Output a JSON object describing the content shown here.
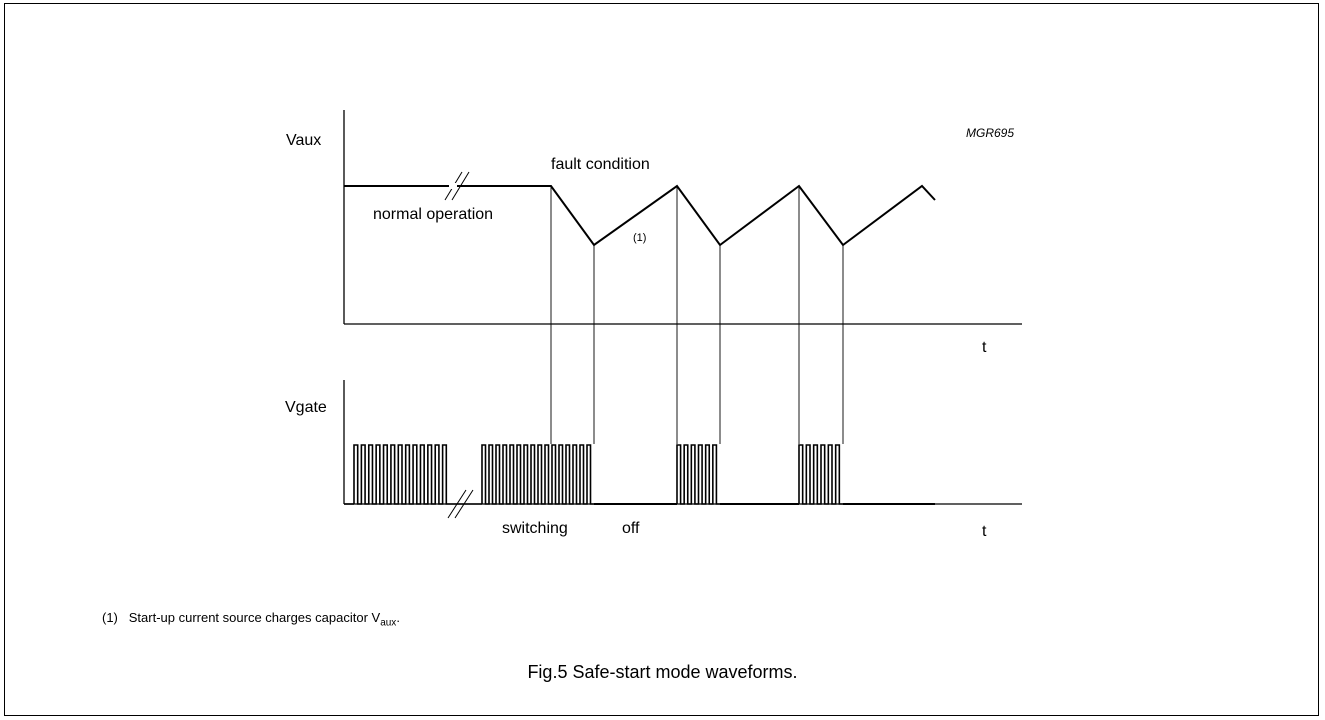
{
  "diagram": {
    "code": "MGR695",
    "vaux_label": "Vaux",
    "vgate_label": "Vgate",
    "t_label_top": "t",
    "t_label_bottom": "t",
    "normal_label": "normal operation",
    "fault_label": "fault condition",
    "note_marker": "(1)",
    "switching_label": "switching",
    "off_label": "off"
  },
  "footnote": {
    "marker": "(1)",
    "text": "Start-up current source charges capacitor V",
    "subscript": "aux",
    "suffix": "."
  },
  "caption": "Fig.5  Safe-start mode waveforms."
}
